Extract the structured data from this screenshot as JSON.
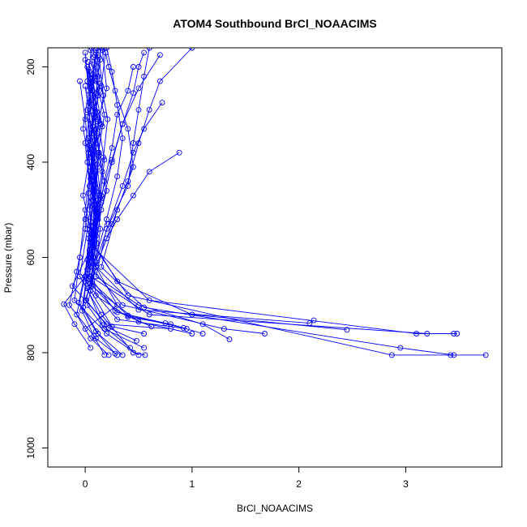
{
  "chart_data": {
    "type": "line",
    "title": "ATOM4 Southbound BrCl_NOAACIMS",
    "xlabel": "BrCl_NOAACIMS",
    "ylabel": "Pressure (mbar)",
    "xlim": [
      -0.35,
      3.9
    ],
    "ylim": [
      1040,
      160
    ],
    "y_reversed": true,
    "grid": false,
    "x_ticks": [
      0,
      1,
      2,
      3
    ],
    "y_ticks": [
      200,
      400,
      600,
      800,
      1000
    ],
    "series_color": "#0000ff",
    "marker": "open-circle",
    "series": [
      {
        "x": [
          0.05,
          0.08,
          0.02,
          0.1,
          0.06,
          0.12,
          0.05,
          0.3,
          0.0
        ],
        "y": [
          165,
          220,
          290,
          360,
          430,
          510,
          600,
          700,
          750
        ]
      },
      {
        "x": [
          0.1,
          0.05,
          0.15,
          0.08,
          0.12,
          0.05,
          0.3,
          1.0,
          2.45
        ],
        "y": [
          170,
          240,
          320,
          400,
          480,
          560,
          650,
          720,
          752
        ]
      },
      {
        "x": [
          0.08,
          0.12,
          0.06,
          0.1,
          0.04,
          0.08,
          0.6,
          3.1,
          3.45
        ],
        "y": [
          180,
          260,
          340,
          420,
          500,
          580,
          690,
          760,
          760
        ]
      },
      {
        "x": [
          0.12,
          0.07,
          0.1,
          0.05,
          0.09,
          0.06,
          0.4,
          2.87,
          3.42,
          3.75
        ],
        "y": [
          175,
          250,
          330,
          410,
          490,
          570,
          680,
          805,
          805,
          805
        ]
      },
      {
        "x": [
          0.0,
          0.05,
          0.03,
          0.08,
          0.0,
          0.1,
          0.5,
          2.1,
          2.14
        ],
        "y": [
          185,
          270,
          350,
          440,
          520,
          620,
          710,
          738,
          732
        ]
      },
      {
        "x": [
          0.15,
          0.1,
          0.18,
          0.12,
          0.2,
          0.1,
          0.05,
          0.35,
          1.3,
          1.68
        ],
        "y": [
          160,
          230,
          300,
          380,
          460,
          540,
          620,
          700,
          750,
          760
        ]
      },
      {
        "x": [
          0.2,
          0.25,
          0.3,
          0.35,
          0.3,
          0.2,
          0.05,
          0.6,
          3.2,
          3.48
        ],
        "y": [
          160,
          210,
          280,
          350,
          430,
          520,
          640,
          720,
          760,
          760
        ]
      },
      {
        "x": [
          0.18,
          0.22,
          0.28,
          0.4,
          0.45,
          0.3,
          0.15,
          0.55,
          2.95,
          3.45
        ],
        "y": [
          160,
          200,
          250,
          330,
          410,
          500,
          620,
          705,
          790,
          805
        ]
      },
      {
        "x": [
          0.6,
          0.55,
          0.5,
          0.45,
          0.4,
          0.2,
          0.1,
          0.5,
          1.1,
          1.35
        ],
        "y": [
          160,
          220,
          290,
          360,
          450,
          540,
          640,
          700,
          740,
          772
        ]
      },
      {
        "x": [
          1.0,
          0.7,
          0.6,
          0.5,
          0.4,
          0.25,
          0.1
        ],
        "y": [
          160,
          230,
          290,
          360,
          440,
          530,
          620
        ]
      },
      {
        "x": [
          0.7,
          0.5,
          0.35,
          0.25,
          0.15,
          0.08
        ],
        "y": [
          175,
          245,
          320,
          400,
          500,
          600
        ]
      },
      {
        "x": [
          0.88,
          0.6,
          0.45,
          0.3,
          0.2,
          0.1,
          0.0
        ],
        "y": [
          380,
          420,
          470,
          520,
          560,
          620,
          690
        ]
      },
      {
        "x": [
          0.72,
          0.55,
          0.45,
          0.35,
          0.22,
          0.1
        ],
        "y": [
          275,
          330,
          380,
          450,
          530,
          610
        ]
      },
      {
        "x": [
          0.55,
          0.5,
          0.45,
          0.35,
          0.25,
          0.15,
          0.05
        ],
        "y": [
          170,
          200,
          255,
          320,
          395,
          470,
          560
        ]
      },
      {
        "x": [
          0.45,
          0.4,
          0.3,
          0.25,
          0.18,
          0.12,
          0.05
        ],
        "y": [
          200,
          250,
          300,
          370,
          440,
          520,
          590
        ]
      },
      {
        "x": [
          0.0,
          0.03,
          -0.02,
          0.05,
          0.0,
          -0.05,
          -0.1,
          0.2,
          0.5
        ],
        "y": [
          170,
          250,
          330,
          410,
          500,
          600,
          690,
          760,
          805
        ]
      },
      {
        "x": [
          0.02,
          0.06,
          0.0,
          0.04,
          0.0,
          -0.08,
          -0.15,
          0.1,
          0.3
        ],
        "y": [
          200,
          280,
          360,
          450,
          540,
          630,
          700,
          770,
          805
        ]
      },
      {
        "x": [
          -0.05,
          0.0,
          0.04,
          -0.02,
          0.06,
          0.0,
          -0.2,
          -0.1,
          0.05
        ],
        "y": [
          230,
          310,
          390,
          470,
          550,
          640,
          698,
          740,
          790
        ]
      },
      {
        "x": [
          0.06,
          0.02,
          0.08,
          0.03,
          0.07,
          0.02,
          -0.05,
          0.15,
          0.45,
          0.56
        ],
        "y": [
          160,
          230,
          300,
          380,
          460,
          540,
          640,
          720,
          800,
          805
        ]
      },
      {
        "x": [
          0.1,
          0.14,
          0.09,
          0.13,
          0.08,
          0.1,
          0.0,
          0.3,
          0.95
        ],
        "y": [
          165,
          235,
          305,
          385,
          465,
          545,
          650,
          730,
          750
        ]
      },
      {
        "x": [
          0.03,
          0.07,
          0.11,
          0.06,
          0.1,
          0.04,
          -0.12,
          0.2,
          0.8
        ],
        "y": [
          190,
          265,
          345,
          425,
          505,
          585,
          660,
          740,
          750
        ]
      },
      {
        "x": [
          0.14,
          0.1,
          0.16,
          0.11,
          0.15,
          0.09,
          0.05,
          0.25,
          0.55
        ],
        "y": [
          185,
          255,
          325,
          405,
          485,
          565,
          670,
          745,
          760
        ]
      },
      {
        "x": [
          0.08,
          0.04,
          0.09,
          0.05,
          0.1,
          0.06,
          0.1,
          0.4,
          0.8,
          1.1
        ],
        "y": [
          195,
          275,
          355,
          435,
          515,
          595,
          680,
          725,
          740,
          760
        ]
      },
      {
        "x": [
          0.16,
          0.2,
          0.12,
          0.18,
          0.14,
          0.1,
          0.05,
          0.3,
          0.75
        ],
        "y": [
          165,
          245,
          315,
          395,
          475,
          555,
          655,
          715,
          738
        ]
      },
      {
        "x": [
          0.04,
          0.09,
          0.05,
          0.1,
          0.07,
          0.03,
          -0.02,
          0.12,
          0.35
        ],
        "y": [
          210,
          290,
          370,
          455,
          535,
          615,
          705,
          760,
          805
        ]
      },
      {
        "x": [
          0.12,
          0.08,
          0.13,
          0.09,
          0.14,
          0.1,
          0.02,
          0.18,
          0.55
        ],
        "y": [
          220,
          300,
          380,
          460,
          540,
          620,
          700,
          750,
          790
        ]
      },
      {
        "x": [
          0.0,
          0.05,
          0.02,
          0.07,
          0.03,
          0.0,
          -0.08,
          0.05,
          0.22
        ],
        "y": [
          240,
          320,
          400,
          480,
          560,
          640,
          720,
          770,
          805
        ]
      },
      {
        "x": [
          0.19,
          0.15,
          0.21,
          0.17,
          0.13,
          0.09,
          0.04,
          0.28,
          0.62
        ],
        "y": [
          170,
          240,
          310,
          390,
          470,
          550,
          640,
          712,
          745
        ]
      },
      {
        "x": [
          0.09,
          0.13,
          0.07,
          0.12,
          0.08,
          0.11,
          0.06,
          0.5,
          1.0
        ],
        "y": [
          175,
          250,
          325,
          410,
          490,
          570,
          660,
          735,
          760
        ]
      },
      {
        "x": [
          0.03,
          0.08,
          0.04,
          0.09,
          0.05,
          0.02,
          -0.06,
          0.1,
          0.28
        ],
        "y": [
          205,
          285,
          365,
          445,
          525,
          605,
          695,
          755,
          802
        ]
      },
      {
        "x": [
          0.11,
          0.07,
          0.12,
          0.08,
          0.13,
          0.07,
          0.03,
          0.4,
          0.92
        ],
        "y": [
          160,
          230,
          310,
          390,
          470,
          550,
          645,
          722,
          748
        ]
      },
      {
        "x": [
          0.07,
          0.11,
          0.06,
          0.1,
          0.05,
          0.08,
          0.01,
          0.22,
          0.48
        ],
        "y": [
          215,
          295,
          375,
          455,
          535,
          615,
          690,
          748,
          775
        ]
      },
      {
        "x": [
          0.13,
          0.17,
          0.11,
          0.16,
          0.1,
          0.06,
          0.02,
          0.16,
          0.42
        ],
        "y": [
          180,
          260,
          340,
          420,
          500,
          580,
          665,
          742,
          790
        ]
      },
      {
        "x": [
          0.05,
          0.02,
          0.07,
          0.03,
          0.06,
          0.02,
          -0.03,
          0.08,
          0.18
        ],
        "y": [
          225,
          305,
          385,
          465,
          545,
          625,
          712,
          765,
          805
        ]
      }
    ]
  }
}
